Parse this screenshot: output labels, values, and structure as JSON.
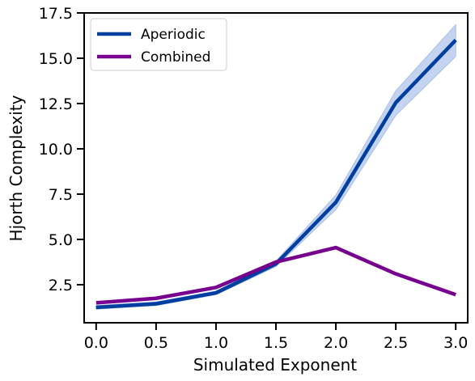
{
  "chart_data": {
    "type": "line",
    "title": "",
    "xlabel": "Simulated Exponent",
    "ylabel": "Hjorth Complexity",
    "x": [
      0.0,
      0.5,
      1.0,
      1.5,
      2.0,
      2.5,
      3.0
    ],
    "xlim": [
      -0.1,
      3.1
    ],
    "ylim": [
      0.4,
      17.5
    ],
    "xticks": [
      "0.0",
      "0.5",
      "1.0",
      "1.5",
      "2.0",
      "2.5",
      "3.0"
    ],
    "yticks": [
      "2.5",
      "5.0",
      "7.5",
      "10.0",
      "12.5",
      "15.0",
      "17.5"
    ],
    "grid": false,
    "legend_position": "upper-left",
    "series": [
      {
        "name": "Aperiodic",
        "color": "#003f9f",
        "band_color": "#a9c0ea",
        "values": [
          1.25,
          1.45,
          2.05,
          3.65,
          7.05,
          12.55,
          16.0
        ],
        "band_lower": [
          1.15,
          1.35,
          1.95,
          3.5,
          6.65,
          11.85,
          15.1
        ],
        "band_upper": [
          1.35,
          1.55,
          2.15,
          3.8,
          7.45,
          13.2,
          16.85
        ]
      },
      {
        "name": "Combined",
        "color": "#77008f",
        "values": [
          1.5,
          1.75,
          2.35,
          3.75,
          4.55,
          3.1,
          1.95
        ]
      }
    ]
  }
}
